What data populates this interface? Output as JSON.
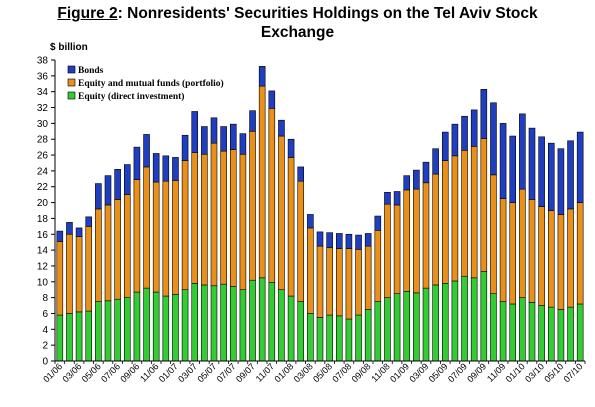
{
  "header": {
    "figure_label": "Figure 2",
    "title_rest": ": Nonresidents' Securities Holdings on the Tel Aviv Stock",
    "title_line2": "Exchange"
  },
  "chart_data": {
    "type": "bar",
    "stacked": true,
    "ylabel": "$ billion",
    "ylim": [
      0,
      38
    ],
    "yticks": [
      0,
      2,
      4,
      6,
      8,
      10,
      12,
      14,
      16,
      18,
      20,
      22,
      24,
      26,
      28,
      30,
      32,
      34,
      36,
      38
    ],
    "grid": false,
    "legend_position": "top-left",
    "categories": [
      "01/06",
      "02/06",
      "03/06",
      "04/06",
      "05/06",
      "06/06",
      "07/06",
      "08/06",
      "09/06",
      "10/06",
      "11/06",
      "12/06",
      "01/07",
      "02/07",
      "03/07",
      "04/07",
      "05/07",
      "06/07",
      "07/07",
      "08/07",
      "09/07",
      "10/07",
      "11/07",
      "12/07",
      "01/08",
      "02/08",
      "03/08",
      "04/08",
      "05/08",
      "06/08",
      "07/08",
      "08/08",
      "09/08",
      "10/08",
      "11/08",
      "12/08",
      "01/09",
      "02/09",
      "03/09",
      "04/09",
      "05/09",
      "06/09",
      "07/09",
      "08/09",
      "09/09",
      "10/09",
      "11/09",
      "12/09",
      "01/10",
      "02/10",
      "03/10",
      "04/10",
      "05/10",
      "06/10",
      "07/10"
    ],
    "x_tick_labels": [
      "01/06",
      "03/06",
      "05/06",
      "07/06",
      "09/06",
      "11/06",
      "01/07",
      "03/07",
      "05/07",
      "07/07",
      "09/07",
      "11/07",
      "01/08",
      "03/08",
      "05/08",
      "07/08",
      "09/08",
      "11/08",
      "01/09",
      "03/09",
      "05/09",
      "07/09",
      "09/09",
      "11/09",
      "01/10",
      "03/10",
      "05/10",
      "07/10"
    ],
    "series": [
      {
        "name": "Equity (direct investment)",
        "color": "#33cc33",
        "values": [
          5.8,
          6.0,
          6.2,
          6.3,
          7.5,
          7.6,
          7.8,
          8.0,
          8.7,
          9.2,
          8.7,
          8.2,
          8.4,
          9.0,
          9.8,
          9.6,
          9.5,
          9.7,
          9.4,
          9.0,
          10.2,
          10.5,
          9.9,
          9.0,
          8.2,
          7.5,
          6.0,
          5.5,
          5.8,
          5.7,
          5.3,
          5.8,
          6.5,
          7.5,
          8.0,
          8.5,
          8.8,
          8.6,
          9.2,
          9.6,
          9.8,
          10.1,
          10.7,
          10.5,
          11.3,
          8.5,
          7.5,
          7.2,
          8.0,
          7.4,
          7.0,
          6.8,
          6.5,
          6.8,
          7.2
        ]
      },
      {
        "name": "Equity and mutual funds (portfolio)",
        "color": "#e8901a",
        "values": [
          9.3,
          10.0,
          9.5,
          10.7,
          11.7,
          12.1,
          12.6,
          13.0,
          14.2,
          15.3,
          13.9,
          14.5,
          14.4,
          16.3,
          16.5,
          16.5,
          18.0,
          16.8,
          17.3,
          17.1,
          18.8,
          24.2,
          22.0,
          19.4,
          17.5,
          15.2,
          10.8,
          9.0,
          8.5,
          8.5,
          8.9,
          8.3,
          8.0,
          9.0,
          11.8,
          11.2,
          12.8,
          13.1,
          13.3,
          14.0,
          15.5,
          15.8,
          15.9,
          16.6,
          16.8,
          15.0,
          13.0,
          12.8,
          13.7,
          13.0,
          12.5,
          12.2,
          12.0,
          12.4,
          12.8
        ]
      },
      {
        "name": "Bonds",
        "color": "#1f3fc0",
        "values": [
          1.3,
          1.5,
          1.1,
          1.2,
          3.2,
          3.7,
          3.8,
          3.8,
          4.1,
          4.1,
          3.6,
          3.2,
          2.9,
          3.2,
          5.2,
          3.5,
          3.2,
          3.1,
          3.2,
          2.6,
          2.6,
          2.5,
          2.2,
          2.0,
          2.3,
          1.8,
          1.7,
          1.8,
          1.9,
          1.9,
          1.8,
          1.8,
          1.6,
          1.8,
          1.5,
          1.7,
          1.8,
          2.4,
          2.6,
          3.2,
          3.6,
          4.0,
          4.3,
          4.6,
          6.2,
          9.1,
          9.5,
          8.4,
          9.5,
          9.0,
          8.8,
          8.5,
          8.3,
          8.6,
          8.9
        ]
      }
    ]
  }
}
